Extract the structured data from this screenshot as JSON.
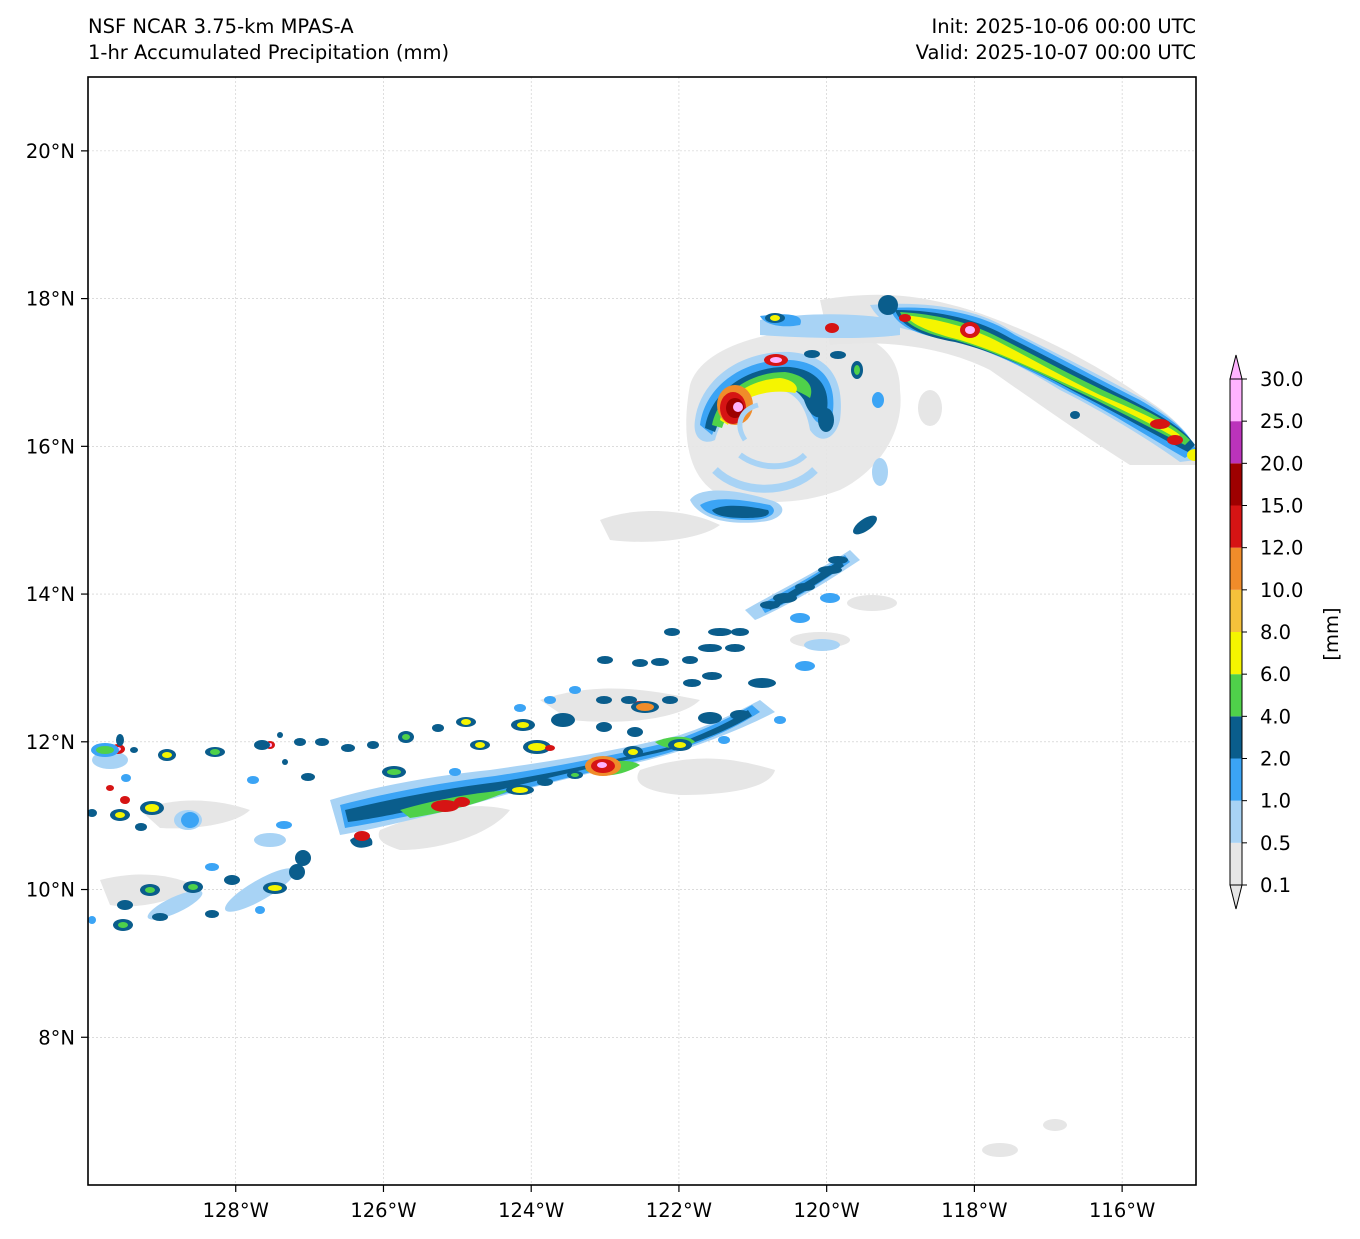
{
  "header": {
    "model": "NSF NCAR 3.75-km MPAS-A",
    "field": "1-hr Accumulated Precipitation (mm)",
    "init": "Init: 2025-10-06 00:00 UTC",
    "valid": "Valid: 2025-10-07 00:00 UTC"
  },
  "map": {
    "lon_range": [
      -130,
      -115
    ],
    "lat_range": [
      6,
      21
    ],
    "lon_ticks": [
      {
        "value": -128,
        "label": "128°W"
      },
      {
        "value": -126,
        "label": "126°W"
      },
      {
        "value": -124,
        "label": "124°W"
      },
      {
        "value": -122,
        "label": "122°W"
      },
      {
        "value": -120,
        "label": "120°W"
      },
      {
        "value": -118,
        "label": "118°W"
      },
      {
        "value": -116,
        "label": "116°W"
      }
    ],
    "lat_ticks": [
      {
        "value": 20,
        "label": "20°N"
      },
      {
        "value": 18,
        "label": "18°N"
      },
      {
        "value": 16,
        "label": "16°N"
      },
      {
        "value": 14,
        "label": "14°N"
      },
      {
        "value": 12,
        "label": "12°N"
      },
      {
        "value": 10,
        "label": "10°N"
      },
      {
        "value": 8,
        "label": "8°N"
      }
    ],
    "gridlines": true
  },
  "colorbar": {
    "unit_label": "[mm]",
    "extend": "both",
    "levels": [
      {
        "value": "0.1",
        "color": "#e6e6e6"
      },
      {
        "value": "0.5",
        "color": "#a8d3f5"
      },
      {
        "value": "1.0",
        "color": "#3ba4f5"
      },
      {
        "value": "2.0",
        "color": "#0a5d8c"
      },
      {
        "value": "4.0",
        "color": "#4fd14a"
      },
      {
        "value": "6.0",
        "color": "#f5f500"
      },
      {
        "value": "8.0",
        "color": "#f5c13b"
      },
      {
        "value": "10.0",
        "color": "#f08c2a"
      },
      {
        "value": "12.0",
        "color": "#d61414"
      },
      {
        "value": "15.0",
        "color": "#9e0000"
      },
      {
        "value": "20.0",
        "color": "#bb33bb"
      },
      {
        "value": "25.0",
        "color": "#ffb3ff"
      },
      {
        "value": "30.0",
        "color": "#ffb3ff"
      }
    ]
  },
  "precip_features": [
    {
      "lon": -121.2,
      "lat": 16.5,
      "intensity": 20
    },
    {
      "lon": -120.6,
      "lat": 17.1,
      "intensity": 15
    },
    {
      "lon": -118.0,
      "lat": 17.6,
      "intensity": 12
    },
    {
      "lon": -122.9,
      "lat": 11.7,
      "intensity": 15
    },
    {
      "lon": -125.2,
      "lat": 11.0,
      "intensity": 12
    },
    {
      "lon": -126.3,
      "lat": 10.7,
      "intensity": 12
    },
    {
      "lon": -129.8,
      "lat": 11.9,
      "intensity": 15
    },
    {
      "lon": -116.0,
      "lat": 16.3,
      "intensity": 12
    }
  ]
}
